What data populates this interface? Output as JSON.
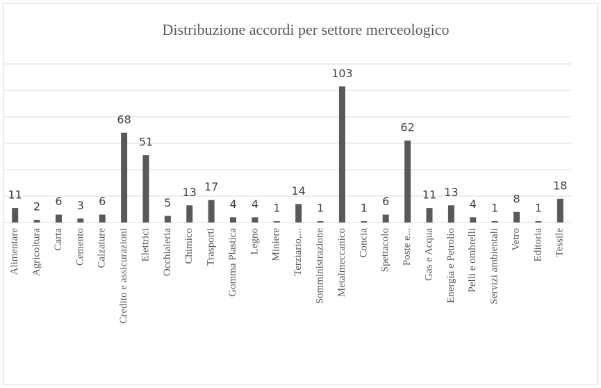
{
  "chart_data": {
    "type": "bar",
    "title": "Distribuzione accordi per settore merceologico",
    "categories": [
      "Alimentare",
      "Agricoltura",
      "Carta",
      "Cemento",
      "Calzature",
      "Credito e assicurazioni",
      "Elettrici",
      "Occhialeria",
      "Chimico",
      "Trasporti",
      "Gomma Plastica",
      "Legno",
      "Miniere",
      "Terziario,...",
      "Somministrazione",
      "Metalmeccanico",
      "Concia",
      "Spettacolo",
      "Poste e...",
      "Gas e Acqua",
      "Energia e Petrolio",
      "Pelli e ombrelli",
      "Servizi ambientali",
      "Vetro",
      "Editoria",
      "Tessile"
    ],
    "values": [
      11,
      2,
      6,
      3,
      6,
      68,
      51,
      5,
      13,
      17,
      4,
      4,
      1,
      14,
      1,
      103,
      1,
      6,
      62,
      11,
      13,
      4,
      1,
      8,
      1,
      18
    ],
    "color": "#595959",
    "ylim": [
      0,
      120
    ],
    "yticks": [
      0,
      20,
      40,
      60,
      80,
      100,
      120
    ],
    "ytick_labels": false,
    "grid": true
  }
}
